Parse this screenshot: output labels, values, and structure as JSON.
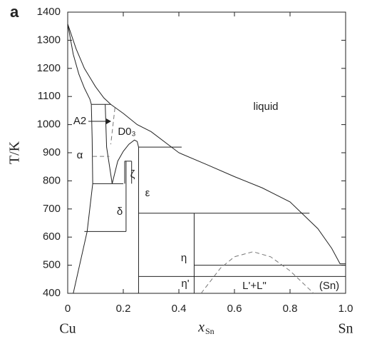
{
  "chart_data": {
    "type": "line",
    "panel_label": "a",
    "ylabel": "T/K",
    "xlabel": "x",
    "xlabel_sub": "Sn",
    "left_label": "Cu",
    "right_label": "Sn",
    "xlim": [
      0,
      1
    ],
    "ylim": [
      400,
      1400
    ],
    "xticks": [
      0,
      0.2,
      0.4,
      0.6,
      0.8,
      {
        "value": 1,
        "label": "1.0"
      }
    ],
    "yticks": [
      400,
      500,
      600,
      700,
      800,
      900,
      1000,
      1100,
      1200,
      1300,
      1400
    ],
    "annotations": [
      "liquid",
      "A2",
      "D0₃",
      "α",
      "ζ",
      "ε",
      "δ",
      "η",
      "η'",
      "L'+L\"",
      "(Sn)"
    ],
    "series": [
      {
        "color": "#222",
        "x": [
          0,
          0.03,
          0.06,
          0.1,
          0.13,
          0.155,
          0.2,
          0.25,
          0.3,
          0.4,
          0.5,
          0.6,
          0.7,
          0.8,
          0.9,
          0.95,
          0.98,
          1.0
        ],
        "values": [
          1358,
          1270,
          1200,
          1135,
          1095,
          1072,
          1040,
          1000,
          975,
          900,
          858,
          815,
          775,
          725,
          630,
          560,
          505,
          505
        ]
      },
      {
        "color": "#222",
        "x": [
          0,
          0.02,
          0.04,
          0.06,
          0.08,
          0.085
        ],
        "values": [
          1358,
          1250,
          1180,
          1130,
          1090,
          1072
        ]
      },
      {
        "color": "#222",
        "x": [
          0.085,
          0.155
        ],
        "values": [
          1072,
          1072
        ]
      },
      {
        "color": "#222",
        "x": [
          0.085,
          0.088,
          0.09,
          0.07,
          0.02
        ],
        "values": [
          1072,
          950,
          790,
          620,
          400
        ]
      },
      {
        "color": "#222",
        "x": [
          0.135,
          0.14,
          0.16
        ],
        "values": [
          1072,
          920,
          790
        ]
      },
      {
        "color": "#222",
        "x": [
          0.16,
          0.18,
          0.2,
          0.22,
          0.24,
          0.25,
          0.255
        ],
        "values": [
          790,
          870,
          905,
          930,
          945,
          940,
          920
        ]
      },
      {
        "color": "#222",
        "x": [
          0.09,
          0.2
        ],
        "values": [
          790,
          790
        ]
      },
      {
        "color": "#222",
        "x": [
          0.06,
          0.21
        ],
        "values": [
          620,
          620
        ]
      },
      {
        "color": "#222",
        "x": [
          0.205,
          0.205
        ],
        "values": [
          790,
          870
        ]
      },
      {
        "color": "#222",
        "x": [
          0.21,
          0.21
        ],
        "values": [
          620,
          870
        ]
      },
      {
        "color": "#222",
        "x": [
          0.205,
          0.23
        ],
        "values": [
          870,
          870
        ]
      },
      {
        "color": "#222",
        "x": [
          0.23,
          0.23
        ],
        "values": [
          870,
          790
        ]
      },
      {
        "color": "#222",
        "x": [
          0.255,
          0.41
        ],
        "values": [
          920,
          920
        ]
      },
      {
        "color": "#222",
        "x": [
          0.255,
          0.255
        ],
        "values": [
          920,
          400
        ]
      },
      {
        "color": "#222",
        "x": [
          0.255,
          0.87
        ],
        "values": [
          685,
          685
        ]
      },
      {
        "color": "#222",
        "x": [
          0.455,
          0.455
        ],
        "values": [
          685,
          400
        ]
      },
      {
        "color": "#222",
        "x": [
          0.455,
          1.0
        ],
        "values": [
          500,
          500
        ]
      },
      {
        "color": "#222",
        "x": [
          0.255,
          1.0
        ],
        "values": [
          460,
          460
        ]
      },
      {
        "color": "#777",
        "dashed": true,
        "x": [
          0.09,
          0.15
        ],
        "values": [
          887,
          887
        ]
      },
      {
        "color": "#777",
        "dashed": true,
        "x": [
          0.17,
          0.155
        ],
        "values": [
          1060,
          930
        ]
      },
      {
        "color": "#777",
        "dashed": true,
        "x": [
          0.48,
          0.55,
          0.6,
          0.667,
          0.73,
          0.8,
          0.885
        ],
        "values": [
          400,
          490,
          530,
          548,
          530,
          480,
          400
        ]
      }
    ]
  }
}
